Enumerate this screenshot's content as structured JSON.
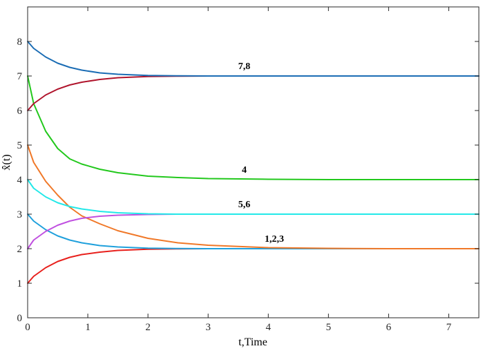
{
  "chart_data": {
    "type": "line",
    "xlabel": "t,Time",
    "ylabel": "x̂(t)",
    "xlim": [
      0,
      7.5
    ],
    "ylim": [
      0,
      9
    ],
    "xticks": [
      0,
      1,
      2,
      3,
      4,
      5,
      6,
      7
    ],
    "yticks": [
      0,
      1,
      2,
      3,
      4,
      5,
      6,
      7,
      8
    ],
    "grid": false,
    "box": true,
    "x": [
      0,
      0.1,
      0.3,
      0.5,
      0.7,
      0.9,
      1.2,
      1.5,
      2.0,
      2.5,
      3.0,
      4.0,
      5.0,
      6.0,
      7.0,
      7.5
    ],
    "series": [
      {
        "color": "#e8201c",
        "values": [
          1.0,
          1.2,
          1.45,
          1.63,
          1.75,
          1.83,
          1.9,
          1.95,
          1.985,
          1.995,
          2.0,
          2.0,
          2.0,
          2.0,
          2.0,
          2.0
        ]
      },
      {
        "color": "#1fa0dc",
        "values": [
          3.0,
          2.8,
          2.55,
          2.37,
          2.25,
          2.17,
          2.09,
          2.05,
          2.015,
          2.005,
          2.0,
          2.0,
          2.0,
          2.0,
          2.0,
          2.0
        ]
      },
      {
        "color": "#f07828",
        "values": [
          5.0,
          4.5,
          3.95,
          3.55,
          3.2,
          2.95,
          2.72,
          2.52,
          2.3,
          2.17,
          2.1,
          2.03,
          2.01,
          2.0,
          2.0,
          2.0
        ]
      },
      {
        "color": "#22c81c",
        "values": [
          7.0,
          6.2,
          5.4,
          4.9,
          4.6,
          4.45,
          4.3,
          4.2,
          4.1,
          4.06,
          4.03,
          4.01,
          4.0,
          4.0,
          4.0,
          4.0
        ]
      },
      {
        "color": "#c050e0",
        "values": [
          2.0,
          2.25,
          2.5,
          2.68,
          2.8,
          2.88,
          2.94,
          2.97,
          2.99,
          3.0,
          3.0,
          3.0,
          3.0,
          3.0,
          3.0,
          3.0
        ]
      },
      {
        "color": "#22e8e8",
        "values": [
          4.0,
          3.75,
          3.5,
          3.33,
          3.22,
          3.15,
          3.08,
          3.04,
          3.01,
          3.0,
          3.0,
          3.0,
          3.0,
          3.0,
          3.0,
          3.0
        ]
      },
      {
        "color": "#b0142c",
        "values": [
          6.0,
          6.2,
          6.45,
          6.62,
          6.74,
          6.82,
          6.9,
          6.95,
          6.985,
          6.995,
          7.0,
          7.0,
          7.0,
          7.0,
          7.0,
          7.0
        ]
      },
      {
        "color": "#1a6cb4",
        "values": [
          8.0,
          7.8,
          7.55,
          7.37,
          7.25,
          7.17,
          7.09,
          7.05,
          7.015,
          7.005,
          7.0,
          7.0,
          7.0,
          7.0,
          7.0,
          7.0
        ]
      }
    ],
    "annotations": [
      {
        "text": "7,8",
        "x": 3.6,
        "y": 7.2
      },
      {
        "text": "4",
        "x": 3.6,
        "y": 4.2
      },
      {
        "text": "5,6",
        "x": 3.6,
        "y": 3.2
      },
      {
        "text": "1,2,3",
        "x": 4.1,
        "y": 2.2
      }
    ]
  }
}
